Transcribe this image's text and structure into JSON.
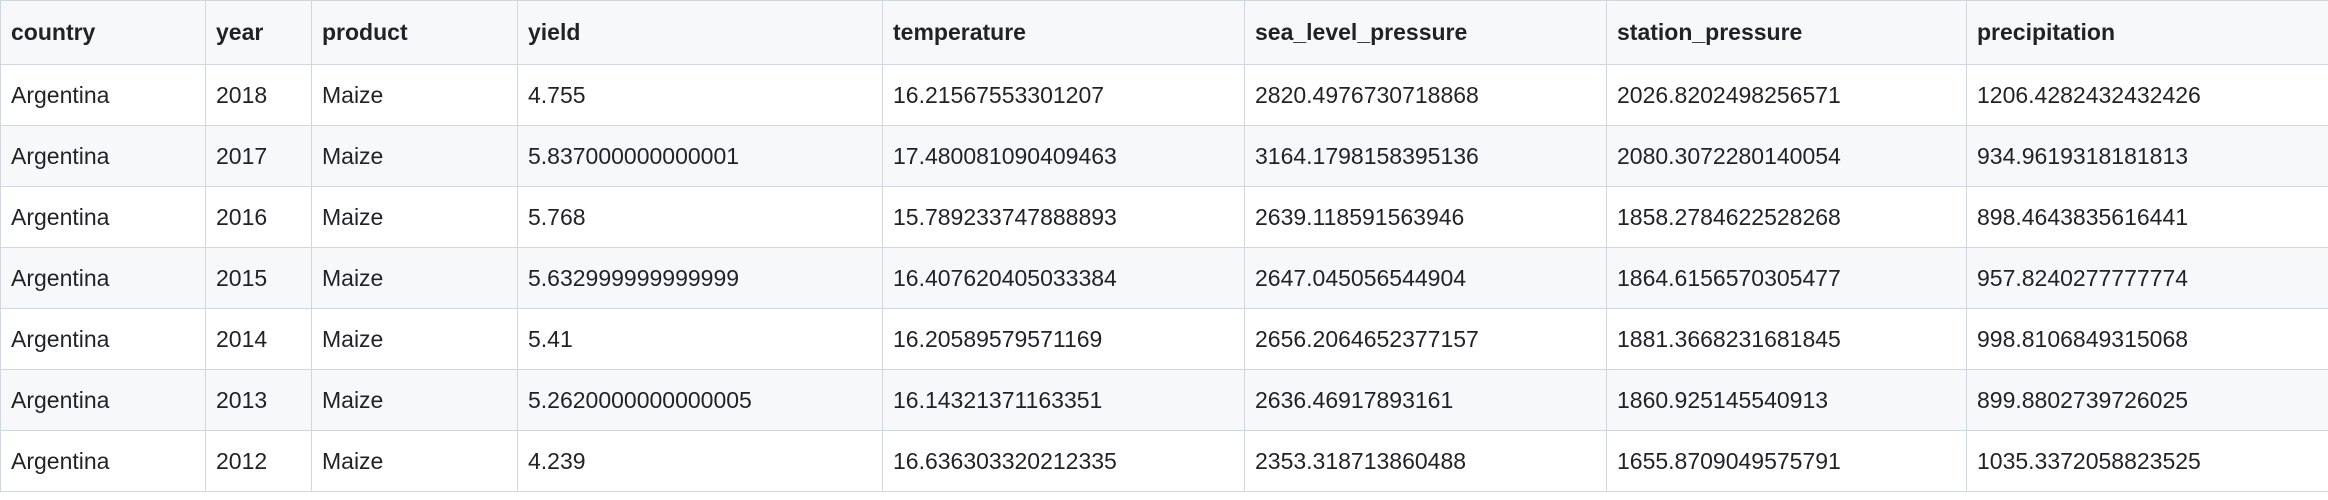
{
  "table": {
    "columns": [
      "country",
      "year",
      "product",
      "yield",
      "temperature",
      "sea_level_pressure",
      "station_pressure",
      "precipitation"
    ],
    "rows": [
      [
        "Argentina",
        "2018",
        "Maize",
        "4.755",
        "16.21567553301207",
        "2820.4976730718868",
        "2026.8202498256571",
        "1206.4282432432426"
      ],
      [
        "Argentina",
        "2017",
        "Maize",
        "5.837000000000001",
        "17.480081090409463",
        "3164.1798158395136",
        "2080.3072280140054",
        "934.9619318181813"
      ],
      [
        "Argentina",
        "2016",
        "Maize",
        "5.768",
        "15.789233747888893",
        "2639.118591563946",
        "1858.2784622528268",
        "898.4643835616441"
      ],
      [
        "Argentina",
        "2015",
        "Maize",
        "5.632999999999999",
        "16.407620405033384",
        "2647.045056544904",
        "1864.6156570305477",
        "957.8240277777774"
      ],
      [
        "Argentina",
        "2014",
        "Maize",
        "5.41",
        "16.20589579571169",
        "2656.2064652377157",
        "1881.3668231681845",
        "998.8106849315068"
      ],
      [
        "Argentina",
        "2013",
        "Maize",
        "5.2620000000000005",
        "16.14321371163351",
        "2636.46917893161",
        "1860.925145540913",
        "899.8802739726025"
      ],
      [
        "Argentina",
        "2012",
        "Maize",
        "4.239",
        "16.636303320212335",
        "2353.318713860488",
        "1655.8709049575791",
        "1035.3372058823525"
      ]
    ]
  }
}
